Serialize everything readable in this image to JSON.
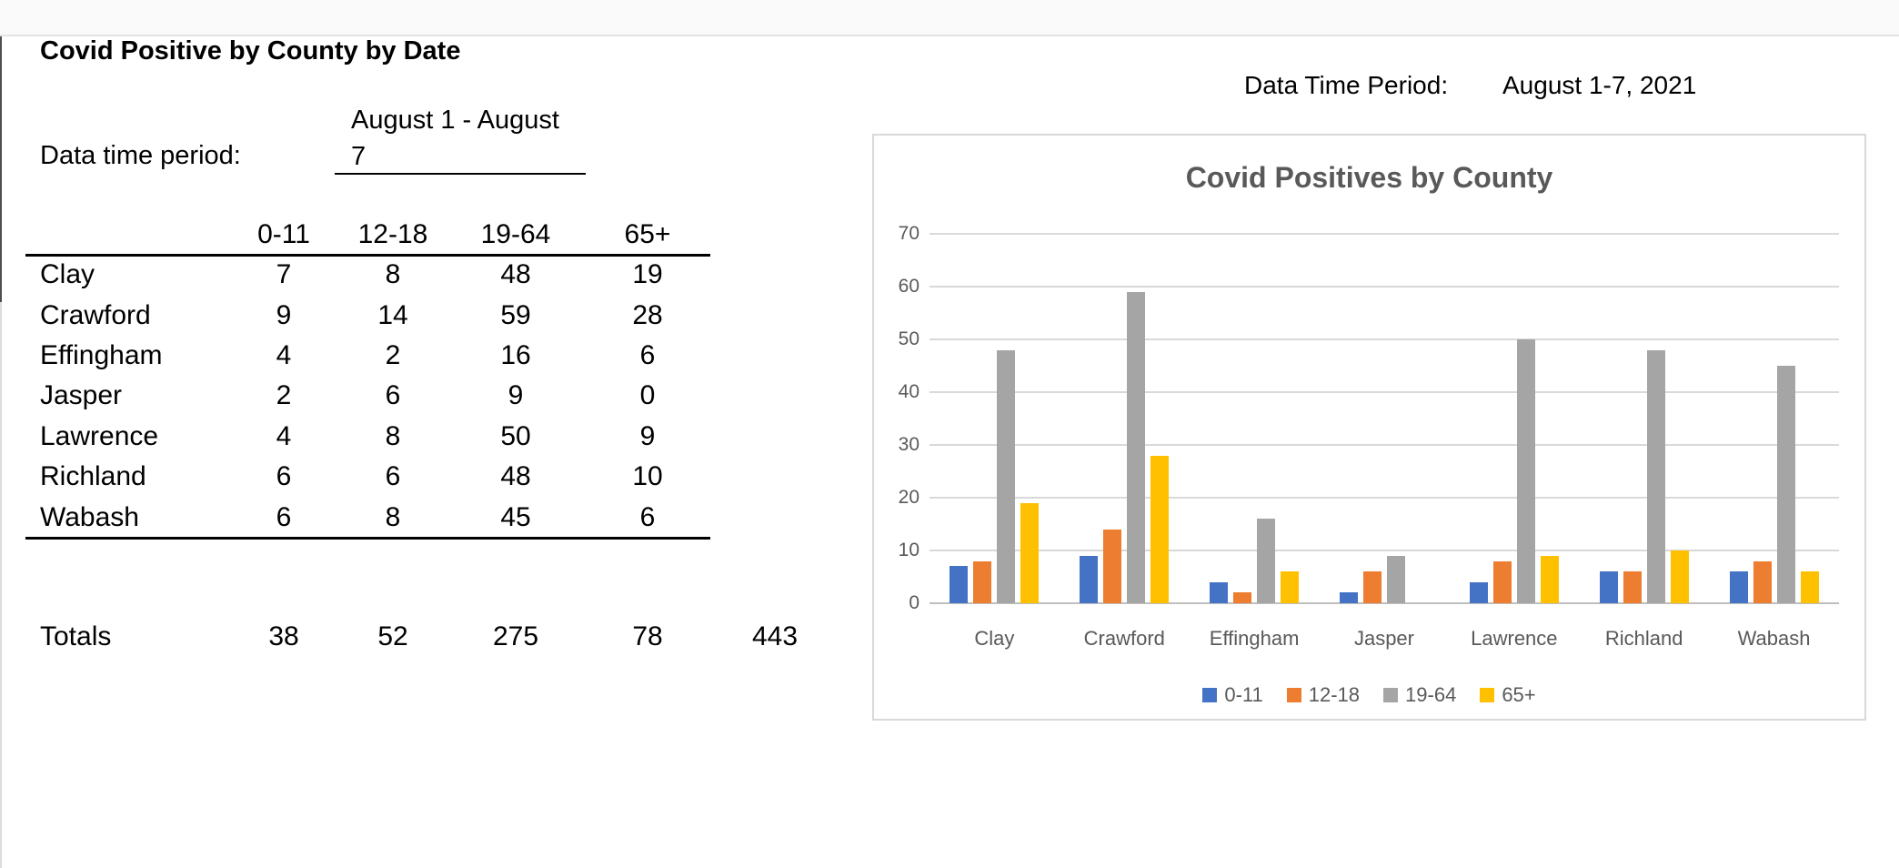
{
  "page": {
    "title": "Covid Positive by County by Date",
    "period_label": "Data time period:",
    "period_value_line1": "August 1 - August",
    "period_value_line2": "7"
  },
  "table": {
    "columns": [
      "0-11",
      "12-18",
      "19-64",
      "65+"
    ],
    "rows": [
      {
        "name": "Clay",
        "values": [
          7,
          8,
          48,
          19
        ]
      },
      {
        "name": "Crawford",
        "values": [
          9,
          14,
          59,
          28
        ]
      },
      {
        "name": "Effingham",
        "values": [
          4,
          2,
          16,
          6
        ]
      },
      {
        "name": "Jasper",
        "values": [
          2,
          6,
          9,
          0
        ]
      },
      {
        "name": "Lawrence",
        "values": [
          4,
          8,
          50,
          9
        ]
      },
      {
        "name": "Richland",
        "values": [
          6,
          6,
          48,
          10
        ]
      },
      {
        "name": "Wabash",
        "values": [
          6,
          8,
          45,
          6
        ]
      }
    ],
    "totals_label": "Totals",
    "totals": [
      38,
      52,
      275,
      78
    ],
    "grand_total": 443
  },
  "chart_header": {
    "label": "Data Time Period:",
    "value": "August 1-7, 2021"
  },
  "chart_data": {
    "type": "bar",
    "title": "Covid Positives by County",
    "categories": [
      "Clay",
      "Crawford",
      "Effingham",
      "Jasper",
      "Lawrence",
      "Richland",
      "Wabash"
    ],
    "series": [
      {
        "name": "0-11",
        "color": "#4472C4",
        "values": [
          7,
          9,
          4,
          2,
          4,
          6,
          6
        ]
      },
      {
        "name": "12-18",
        "color": "#ED7D31",
        "values": [
          8,
          14,
          2,
          6,
          8,
          6,
          8
        ]
      },
      {
        "name": "19-64",
        "color": "#A5A5A5",
        "values": [
          48,
          59,
          16,
          9,
          50,
          48,
          45
        ]
      },
      {
        "name": "65+",
        "color": "#FFC000",
        "values": [
          19,
          28,
          6,
          0,
          9,
          10,
          6
        ]
      }
    ],
    "ylim": [
      0,
      70
    ],
    "ytick_step": 10,
    "grid": true,
    "legend_position": "bottom",
    "xlabel": "",
    "ylabel": ""
  },
  "colors": {
    "chart_text": "#595959",
    "gridline": "#d9d9d9",
    "chart_border": "#d9d9d9",
    "table_text": "#000000"
  }
}
